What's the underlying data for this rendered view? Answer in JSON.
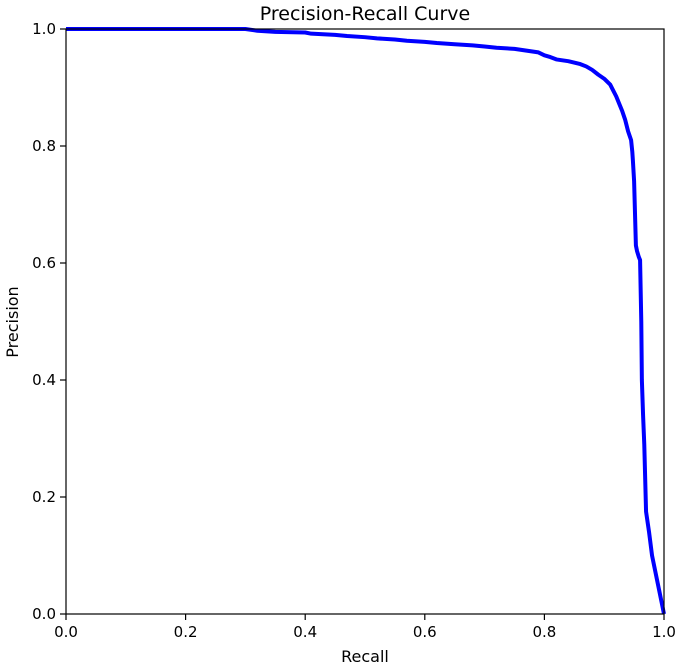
{
  "chart_data": {
    "type": "line",
    "title": "Precision-Recall Curve",
    "xlabel": "Recall",
    "ylabel": "Precision",
    "xlim": [
      0.0,
      1.0
    ],
    "ylim": [
      0.0,
      1.0
    ],
    "xticks": [
      "0.0",
      "0.2",
      "0.4",
      "0.6",
      "0.8",
      "1.0"
    ],
    "yticks": [
      "0.0",
      "0.2",
      "0.4",
      "0.6",
      "0.8",
      "1.0"
    ],
    "grid": false,
    "line_color": "#0000ff",
    "series": [
      {
        "x": [
          0.0,
          0.1,
          0.2,
          0.3,
          0.32,
          0.35,
          0.4,
          0.41,
          0.45,
          0.47,
          0.5,
          0.52,
          0.55,
          0.57,
          0.6,
          0.62,
          0.65,
          0.68,
          0.7,
          0.72,
          0.75,
          0.77,
          0.79,
          0.8,
          0.81,
          0.82,
          0.84,
          0.86,
          0.87,
          0.88,
          0.89,
          0.9,
          0.91,
          0.915,
          0.92,
          0.93,
          0.935,
          0.94,
          0.945,
          0.947,
          0.948,
          0.95,
          0.953,
          0.955,
          0.958,
          0.96,
          0.962,
          0.963,
          0.965,
          0.967,
          0.97,
          0.975,
          0.98,
          0.99,
          1.0
        ],
        "y": [
          1.0,
          1.0,
          1.0,
          1.0,
          0.997,
          0.995,
          0.994,
          0.992,
          0.99,
          0.988,
          0.986,
          0.984,
          0.982,
          0.98,
          0.978,
          0.976,
          0.974,
          0.972,
          0.97,
          0.968,
          0.966,
          0.963,
          0.96,
          0.955,
          0.952,
          0.948,
          0.945,
          0.94,
          0.936,
          0.93,
          0.922,
          0.915,
          0.905,
          0.895,
          0.885,
          0.86,
          0.845,
          0.825,
          0.81,
          0.79,
          0.775,
          0.74,
          0.63,
          0.62,
          0.61,
          0.605,
          0.5,
          0.4,
          0.34,
          0.29,
          0.175,
          0.14,
          0.1,
          0.05,
          0.0
        ]
      }
    ]
  }
}
